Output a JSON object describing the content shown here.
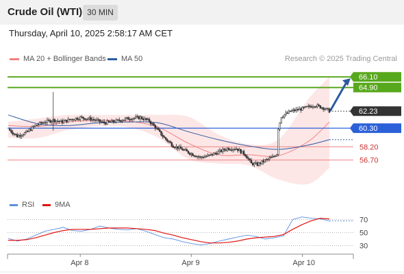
{
  "header": {
    "title": "Crude Oil (WTI)",
    "timeframe": "30 MIN",
    "timestamp": "Thursday, April 10, 2025 2:58:17 AM CET"
  },
  "legend": {
    "bollinger": "MA 20 + Bollinger Bands",
    "ma50": "MA 50",
    "credit": "Research © 2025 Trading Central",
    "rsi": "RSI",
    "rsi_ma": "9MA"
  },
  "colors": {
    "bollinger": "#f08080",
    "ma50": "#2c5aa0",
    "resistance": "#58a81d",
    "support": "#f08080",
    "pivot": "#2b60d8",
    "last_price": "#333333",
    "rsi": "#5a8ee0",
    "rsi_ma": "#e01010",
    "candle_up": "#ffffff",
    "candle_down": "#333333"
  },
  "levels": {
    "resistance": [
      {
        "label": "66.10",
        "value": 66.1
      },
      {
        "label": "64.90",
        "value": 64.9
      }
    ],
    "last_price": {
      "label": "62.23",
      "value": 62.23
    },
    "pivot": {
      "label": "60.30",
      "value": 60.3
    },
    "support": [
      {
        "label": "58.20",
        "value": 58.2
      },
      {
        "label": "56.70",
        "value": 56.7
      }
    ]
  },
  "chart_data": [
    {
      "type": "candlestick",
      "x_labels": [
        "Apr 8",
        "Apr 9",
        "Apr 10"
      ],
      "ylim": [
        52.8,
        67.2
      ],
      "grid": false,
      "legend_position": "top-left",
      "series": [
        {
          "name": "MA 20 + Bollinger Bands",
          "role": "band"
        },
        {
          "name": "MA 50",
          "role": "line"
        }
      ],
      "price_path": [
        {
          "t": 0,
          "v": 60.2
        },
        {
          "t": 6,
          "v": 59.4
        },
        {
          "t": 12,
          "v": 59.8
        },
        {
          "t": 18,
          "v": 60.6
        },
        {
          "t": 24,
          "v": 61.0
        },
        {
          "t": 30,
          "v": 61.2
        },
        {
          "t": 36,
          "v": 61.0
        },
        {
          "t": 42,
          "v": 61.3
        },
        {
          "t": 48,
          "v": 61.5
        },
        {
          "t": 56,
          "v": 61.3
        },
        {
          "t": 64,
          "v": 60.9
        },
        {
          "t": 72,
          "v": 61.1
        },
        {
          "t": 80,
          "v": 61.4
        },
        {
          "t": 88,
          "v": 61.5
        },
        {
          "t": 94,
          "v": 61.1
        },
        {
          "t": 98,
          "v": 60.4
        },
        {
          "t": 104,
          "v": 59.2
        },
        {
          "t": 110,
          "v": 58.3
        },
        {
          "t": 116,
          "v": 57.9
        },
        {
          "t": 122,
          "v": 57.4
        },
        {
          "t": 128,
          "v": 57.0
        },
        {
          "t": 134,
          "v": 57.2
        },
        {
          "t": 140,
          "v": 57.6
        },
        {
          "t": 146,
          "v": 58.0
        },
        {
          "t": 152,
          "v": 58.0
        },
        {
          "t": 158,
          "v": 57.3
        },
        {
          "t": 162,
          "v": 56.3
        },
        {
          "t": 166,
          "v": 56.2
        },
        {
          "t": 172,
          "v": 56.7
        },
        {
          "t": 176,
          "v": 57.0
        },
        {
          "t": 179,
          "v": 57.4
        },
        {
          "t": 180,
          "v": 60.3
        },
        {
          "t": 182,
          "v": 61.6
        },
        {
          "t": 188,
          "v": 62.2
        },
        {
          "t": 196,
          "v": 62.5
        },
        {
          "t": 204,
          "v": 62.9
        },
        {
          "t": 210,
          "v": 62.6
        },
        {
          "t": 214,
          "v": 62.23
        }
      ],
      "ma50": [
        {
          "t": 0,
          "v": 61.8
        },
        {
          "t": 20,
          "v": 60.8
        },
        {
          "t": 40,
          "v": 60.6
        },
        {
          "t": 60,
          "v": 60.9
        },
        {
          "t": 80,
          "v": 61.0
        },
        {
          "t": 100,
          "v": 60.9
        },
        {
          "t": 120,
          "v": 59.9
        },
        {
          "t": 140,
          "v": 59.0
        },
        {
          "t": 160,
          "v": 58.3
        },
        {
          "t": 180,
          "v": 57.9
        },
        {
          "t": 200,
          "v": 58.4
        },
        {
          "t": 214,
          "v": 59.0
        }
      ],
      "bollinger_mid": [
        {
          "t": 0,
          "v": 60.6
        },
        {
          "t": 20,
          "v": 60.5
        },
        {
          "t": 40,
          "v": 61.0
        },
        {
          "t": 60,
          "v": 61.2
        },
        {
          "t": 80,
          "v": 61.1
        },
        {
          "t": 100,
          "v": 60.4
        },
        {
          "t": 120,
          "v": 58.6
        },
        {
          "t": 140,
          "v": 57.3
        },
        {
          "t": 160,
          "v": 57.3
        },
        {
          "t": 180,
          "v": 57.2
        },
        {
          "t": 200,
          "v": 58.8
        },
        {
          "t": 214,
          "v": 61.0
        }
      ],
      "bollinger_upper": [
        {
          "t": 0,
          "v": 61.0
        },
        {
          "t": 20,
          "v": 61.4
        },
        {
          "t": 40,
          "v": 61.8
        },
        {
          "t": 60,
          "v": 61.8
        },
        {
          "t": 80,
          "v": 61.8
        },
        {
          "t": 100,
          "v": 61.8
        },
        {
          "t": 120,
          "v": 61.6
        },
        {
          "t": 140,
          "v": 59.6
        },
        {
          "t": 160,
          "v": 58.5
        },
        {
          "t": 180,
          "v": 59.0
        },
        {
          "t": 200,
          "v": 63.6
        },
        {
          "t": 214,
          "v": 66.1
        }
      ],
      "bollinger_lower": [
        {
          "t": 0,
          "v": 59.2
        },
        {
          "t": 20,
          "v": 59.2
        },
        {
          "t": 40,
          "v": 60.1
        },
        {
          "t": 60,
          "v": 60.5
        },
        {
          "t": 80,
          "v": 60.4
        },
        {
          "t": 100,
          "v": 59.2
        },
        {
          "t": 120,
          "v": 56.8
        },
        {
          "t": 140,
          "v": 56.3
        },
        {
          "t": 160,
          "v": 56.1
        },
        {
          "t": 180,
          "v": 54.5
        },
        {
          "t": 200,
          "v": 54.0
        },
        {
          "t": 214,
          "v": 55.8
        }
      ],
      "forecast_arrow": {
        "from": 62.23,
        "to": 66.1
      }
    },
    {
      "type": "line",
      "ylim": [
        20,
        80
      ],
      "tick_labels": [
        "70",
        "50",
        "30"
      ],
      "reference_lines": [
        70,
        50,
        30
      ],
      "series": [
        {
          "name": "RSI",
          "values": [
            41,
            37,
            40,
            46,
            52,
            55,
            58,
            53,
            52,
            55,
            60,
            57,
            55,
            54,
            56,
            52,
            47,
            42,
            40,
            36,
            33,
            31,
            33,
            37,
            40,
            43,
            46,
            44,
            40,
            42,
            45,
            70,
            74,
            72,
            71,
            68
          ]
        },
        {
          "name": "9MA",
          "values": [
            38,
            38,
            39,
            42,
            46,
            50,
            53,
            55,
            55,
            55,
            56,
            57,
            57,
            57,
            56,
            55,
            53,
            49,
            46,
            42,
            39,
            36,
            34,
            34,
            35,
            37,
            40,
            42,
            43,
            44,
            47,
            55,
            62,
            68,
            72,
            71
          ]
        }
      ]
    }
  ]
}
